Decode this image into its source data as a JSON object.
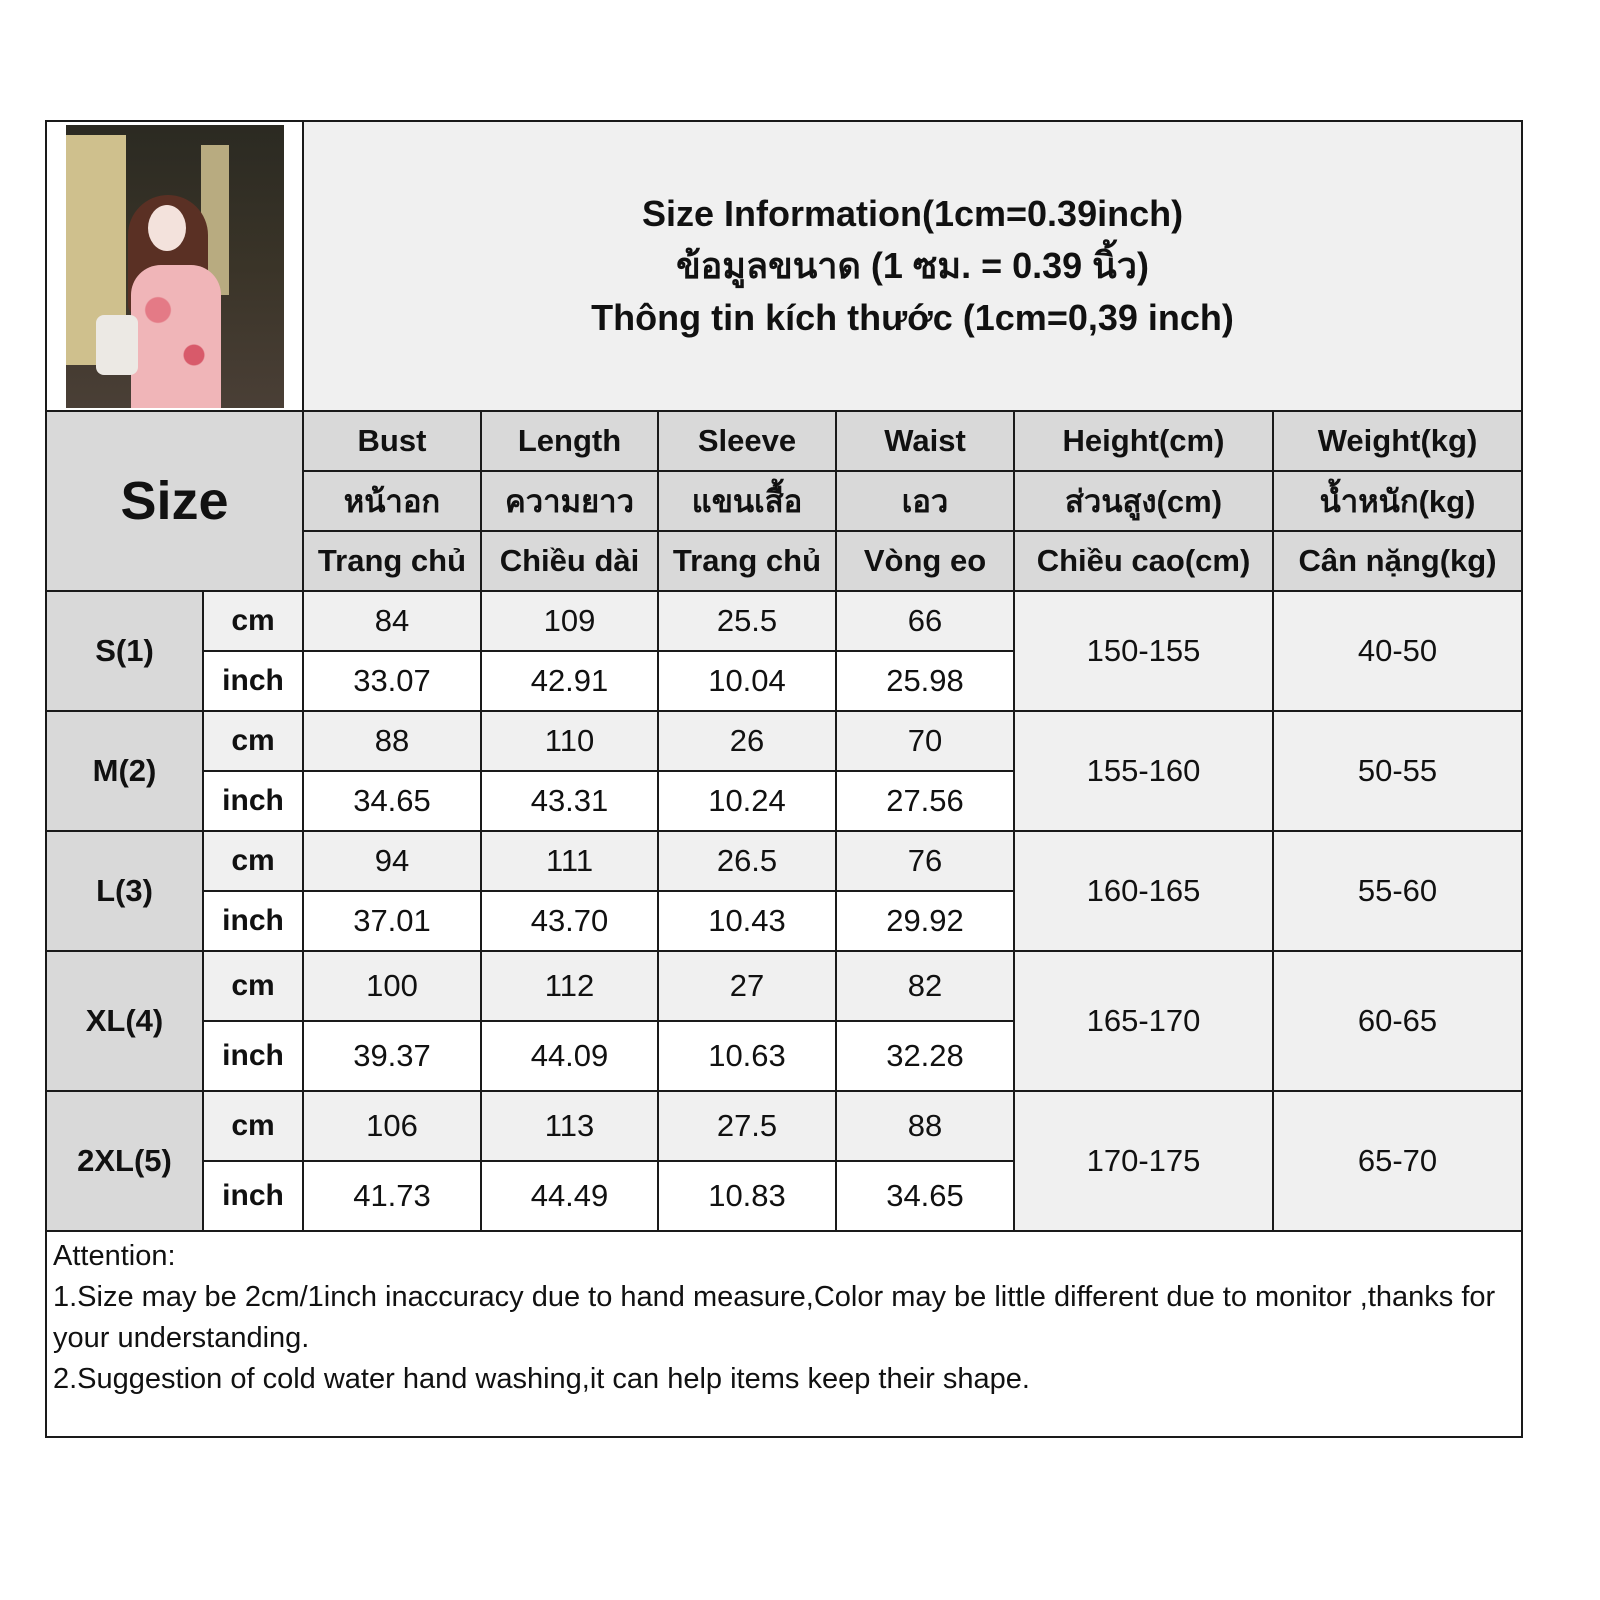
{
  "title": {
    "line_en": "Size Information(1cm=0.39inch)",
    "line_th": "ข้อมูลขนาด (1 ซม. = 0.39 นิ้ว)",
    "line_vi": "Thông tin kích thước (1cm=0,39 inch)"
  },
  "size_header": "Size",
  "columns": [
    {
      "en": "Bust",
      "th": "หน้าอก",
      "vi": "Trang chủ"
    },
    {
      "en": "Length",
      "th": "ความยาว",
      "vi": "Chiều dài"
    },
    {
      "en": "Sleeve",
      "th": "แขนเสื้อ",
      "vi": "Trang chủ"
    },
    {
      "en": "Waist",
      "th": "เอว",
      "vi": "Vòng eo"
    },
    {
      "en": "Height(cm)",
      "th": "ส่วนสูง(cm)",
      "vi": "Chiều cao(cm)"
    },
    {
      "en": "Weight(kg)",
      "th": "น้ำหนัก(kg)",
      "vi": "Cân nặng(kg)"
    }
  ],
  "units": {
    "cm": "cm",
    "inch": "inch"
  },
  "rows": [
    {
      "size": "S(1)",
      "cm": [
        "84",
        "109",
        "25.5",
        "66"
      ],
      "inch": [
        "33.07",
        "42.91",
        "10.04",
        "25.98"
      ],
      "height": "150-155",
      "weight": "40-50"
    },
    {
      "size": "M(2)",
      "cm": [
        "88",
        "110",
        "26",
        "70"
      ],
      "inch": [
        "34.65",
        "43.31",
        "10.24",
        "27.56"
      ],
      "height": "155-160",
      "weight": "50-55"
    },
    {
      "size": "L(3)",
      "cm": [
        "94",
        "111",
        "26.5",
        "76"
      ],
      "inch": [
        "37.01",
        "43.70",
        "10.43",
        "29.92"
      ],
      "height": "160-165",
      "weight": "55-60"
    },
    {
      "size": "XL(4)",
      "cm": [
        "100",
        "112",
        "27",
        "82"
      ],
      "inch": [
        "39.37",
        "44.09",
        "10.63",
        "32.28"
      ],
      "height": "165-170",
      "weight": "60-65"
    },
    {
      "size": "2XL(5)",
      "cm": [
        "106",
        "113",
        "27.5",
        "88"
      ],
      "inch": [
        "41.73",
        "44.49",
        "10.83",
        "34.65"
      ],
      "height": "170-175",
      "weight": "65-70"
    }
  ],
  "attention": {
    "heading": "Attention:",
    "note1": "1.Size may be 2cm/1inch inaccuracy due to hand measure,Color may be little different due to monitor ,thanks for your understanding.",
    "note2": "2.Suggestion of cold water hand washing,it can help items keep their shape."
  },
  "colors": {
    "header_bg": "#d9d9d9",
    "cell_bg": "#f0f0f0",
    "border": "#1a1a1a"
  }
}
